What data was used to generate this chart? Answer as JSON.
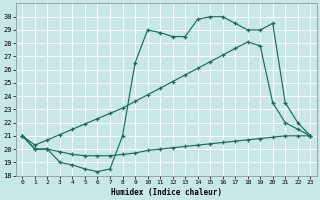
{
  "xlabel": "Humidex (Indice chaleur)",
  "bg_color": "#c8e8e8",
  "grid_color": "#ffffff",
  "line_color": "#1a6b5a",
  "xlim": [
    -0.5,
    23.5
  ],
  "ylim": [
    18,
    31
  ],
  "xticks": [
    0,
    1,
    2,
    3,
    4,
    5,
    6,
    7,
    8,
    9,
    10,
    11,
    12,
    13,
    14,
    15,
    16,
    17,
    18,
    19,
    20,
    21,
    22,
    23
  ],
  "yticks": [
    18,
    19,
    20,
    21,
    22,
    23,
    24,
    25,
    26,
    27,
    28,
    29,
    30
  ],
  "line1_x": [
    0,
    1,
    2,
    3,
    4,
    5,
    6,
    7,
    8,
    9,
    10,
    11,
    12,
    13,
    14,
    15,
    16,
    17,
    18,
    19,
    20,
    21,
    22,
    23
  ],
  "line1_y": [
    21,
    20,
    20,
    19,
    18.8,
    18.5,
    18.3,
    18.5,
    21,
    26.5,
    29,
    28.8,
    28.5,
    28.5,
    29.8,
    30,
    30,
    29.5,
    29,
    29,
    29.5,
    23.5,
    22,
    21
  ],
  "line2_x": [
    0,
    1,
    2,
    3,
    4,
    5,
    6,
    7,
    8,
    9,
    10,
    11,
    12,
    13,
    14,
    15,
    16,
    17,
    18,
    19,
    20,
    21,
    22,
    23
  ],
  "line2_y": [
    21,
    20.3,
    20.7,
    21.1,
    21.5,
    21.9,
    22.3,
    22.7,
    23.1,
    23.6,
    24.1,
    24.6,
    25.1,
    25.6,
    26.1,
    26.6,
    27.1,
    27.6,
    28.1,
    27.8,
    23.5,
    22,
    21.5,
    21
  ],
  "line3_x": [
    0,
    1,
    2,
    3,
    4,
    5,
    6,
    7,
    8,
    9,
    10,
    11,
    12,
    13,
    14,
    15,
    16,
    17,
    18,
    19,
    20,
    21,
    22,
    23
  ],
  "line3_y": [
    21,
    20.0,
    20.0,
    19.8,
    19.6,
    19.5,
    19.5,
    19.5,
    19.6,
    19.7,
    19.9,
    20.0,
    20.1,
    20.2,
    20.3,
    20.4,
    20.5,
    20.6,
    20.7,
    20.8,
    20.9,
    21.0,
    21.0,
    21.0
  ]
}
